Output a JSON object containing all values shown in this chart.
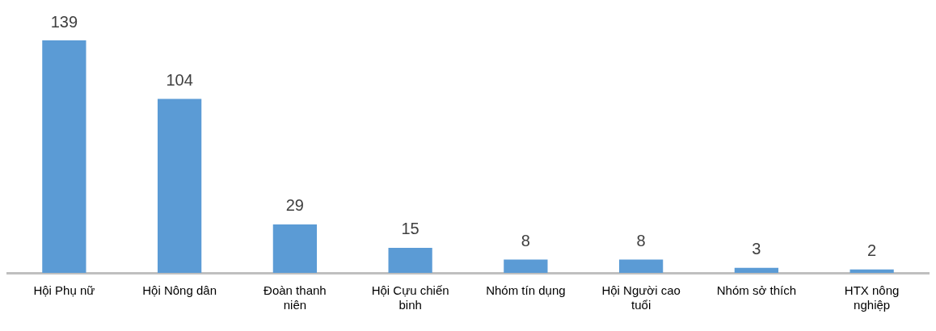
{
  "chart_data": {
    "type": "bar",
    "categories": [
      "Hội Phụ nữ",
      "Hội Nông dân",
      "Đoàn thanh niên",
      "Hội Cựu chiến binh",
      "Nhóm tín dụng",
      "Hội Người cao tuổi",
      "Nhóm sở thích",
      "HTX nông nghiệp"
    ],
    "values": [
      139,
      104,
      29,
      15,
      8,
      8,
      3,
      2
    ],
    "color": "#5b9bd5",
    "data_labels": true,
    "grid": false,
    "legend": false
  }
}
